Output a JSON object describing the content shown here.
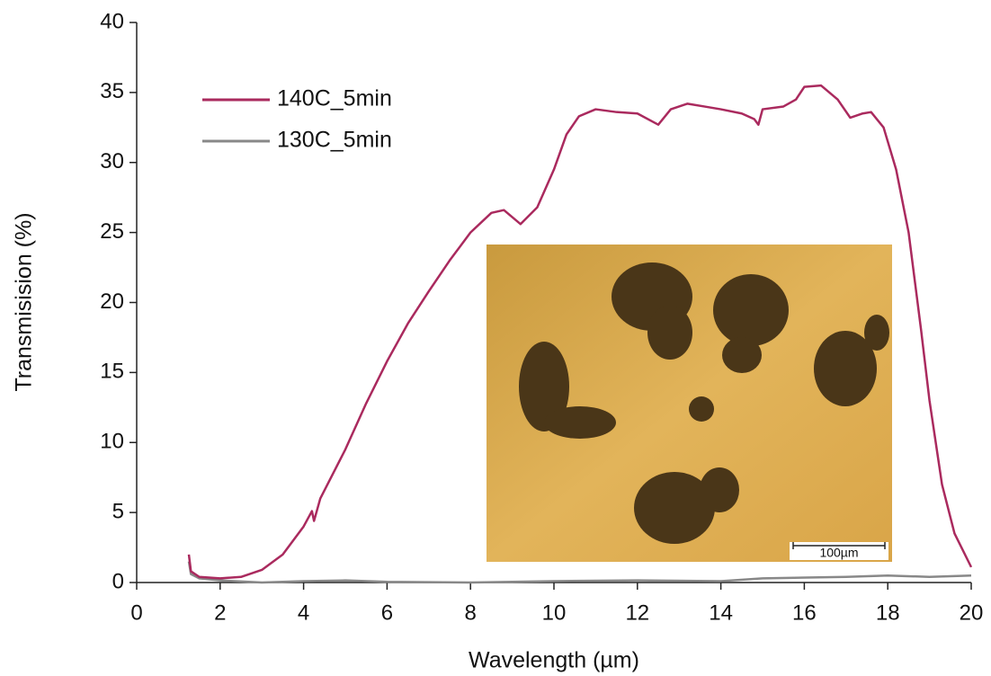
{
  "chart_data": {
    "type": "line",
    "x_label": "Wavelength (µm)",
    "y_label": "Transmisision (%)",
    "xlim": [
      0,
      20
    ],
    "ylim": [
      0,
      40
    ],
    "xticks": [
      0,
      2,
      4,
      6,
      8,
      10,
      12,
      14,
      16,
      18,
      20
    ],
    "yticks": [
      0,
      5,
      10,
      15,
      20,
      25,
      30,
      35,
      40
    ],
    "legend": "upper-left",
    "inset_annotation": "100µm",
    "series": [
      {
        "name": "140C_5min",
        "color": "#aa2a5e",
        "x": [
          1.25,
          1.3,
          1.5,
          2.0,
          2.5,
          3.0,
          3.5,
          4.0,
          4.2,
          4.25,
          4.4,
          5.0,
          5.5,
          6.0,
          6.5,
          7.0,
          7.5,
          8.0,
          8.5,
          8.8,
          9.2,
          9.6,
          10.0,
          10.3,
          10.6,
          11.0,
          11.5,
          12.0,
          12.5,
          12.8,
          13.2,
          13.6,
          14.0,
          14.5,
          14.8,
          14.9,
          15.0,
          15.5,
          15.8,
          16.0,
          16.4,
          16.8,
          17.1,
          17.4,
          17.6,
          17.9,
          18.2,
          18.5,
          18.8,
          19.0,
          19.3,
          19.6,
          20.0
        ],
        "values": [
          2.0,
          0.8,
          0.4,
          0.3,
          0.4,
          0.9,
          2.0,
          4.0,
          5.1,
          4.4,
          6.0,
          9.5,
          12.8,
          15.8,
          18.5,
          20.8,
          23.0,
          25.0,
          26.4,
          26.6,
          25.6,
          26.8,
          29.5,
          32.0,
          33.3,
          33.8,
          33.6,
          33.5,
          32.7,
          33.8,
          34.2,
          34.0,
          33.8,
          33.5,
          33.1,
          32.7,
          33.8,
          34.0,
          34.5,
          35.4,
          35.5,
          34.5,
          33.2,
          33.5,
          33.6,
          32.5,
          29.5,
          25.0,
          18.0,
          13.0,
          7.0,
          3.5,
          1.1
        ]
      },
      {
        "name": "130C_5min",
        "color": "#888888",
        "x": [
          1.25,
          1.3,
          1.5,
          2.0,
          3.0,
          4.0,
          5.0,
          6.0,
          8.0,
          10.0,
          12.0,
          14.0,
          15.0,
          17.0,
          18.0,
          19.0,
          20.0
        ],
        "values": [
          1.5,
          0.6,
          0.3,
          0.15,
          0.0,
          0.1,
          0.15,
          0.05,
          0.0,
          0.1,
          0.15,
          0.1,
          0.3,
          0.4,
          0.5,
          0.4,
          0.5
        ]
      }
    ]
  }
}
